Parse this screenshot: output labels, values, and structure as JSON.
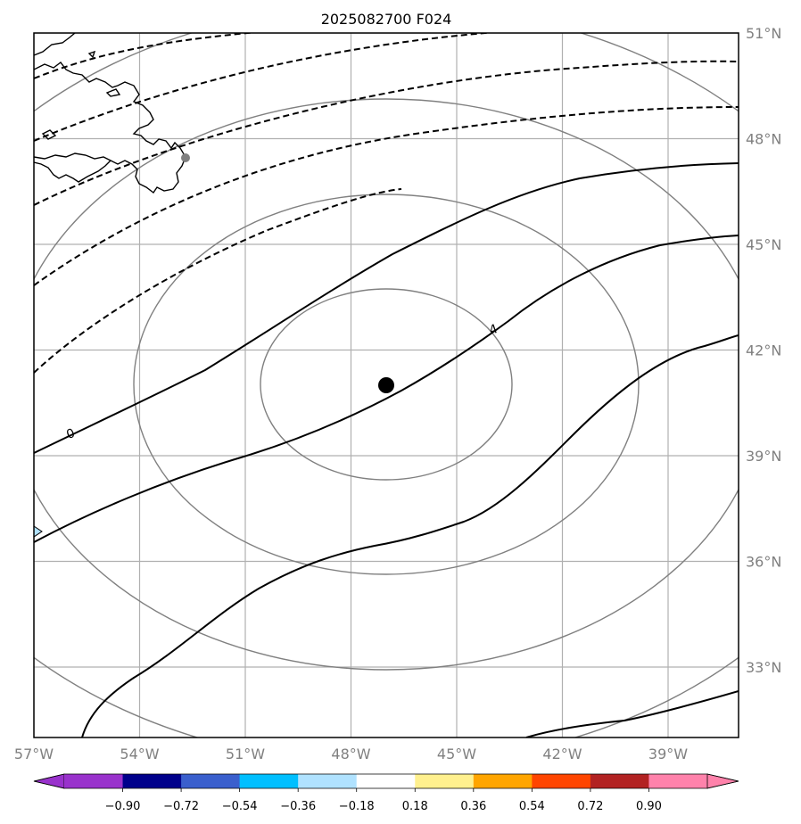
{
  "title": "2025082700 F024",
  "map": {
    "lon_range": [
      -57,
      -37
    ],
    "lat_range": [
      31,
      51
    ],
    "lon_ticks": [
      "57°W",
      "54°W",
      "51°W",
      "48°W",
      "45°W",
      "42°W",
      "39°W"
    ],
    "lat_ticks": [
      "51°N",
      "48°N",
      "45°N",
      "42°N",
      "39°N",
      "36°N",
      "33°N"
    ],
    "gridlines": true,
    "center_marker": {
      "lon": -47,
      "lat": 41.1
    }
  },
  "contour_labels": [
    {
      "text": "0",
      "lon": -56,
      "lat": 39.8
    },
    {
      "text": "4",
      "lon": -44,
      "lat": 42.7
    }
  ],
  "colorbar": {
    "ticks": [
      "−0.90",
      "−0.72",
      "−0.54",
      "−0.36",
      "−0.18",
      "0.18",
      "0.36",
      "0.54",
      "0.72",
      "0.90"
    ],
    "colors": [
      "#9932cc",
      "#00008b",
      "#3a5fcd",
      "#00bfff",
      "#b0e2ff",
      "#ffffff",
      "#fff08e",
      "#ffa500",
      "#ff4500",
      "#b22222",
      "#ff82ab"
    ],
    "extend": "both"
  }
}
